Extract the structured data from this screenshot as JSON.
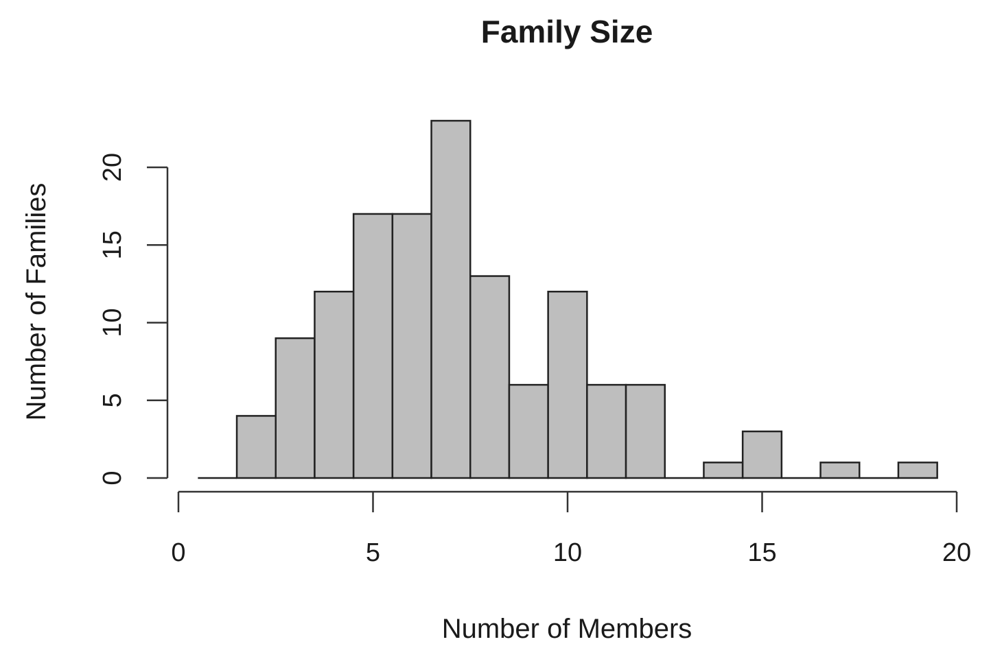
{
  "chart_data": {
    "type": "bar",
    "title": "Family Size",
    "xlabel": "Number of Members",
    "ylabel": "Number of Families",
    "bin_width": 1,
    "x": [
      1,
      2,
      3,
      4,
      5,
      6,
      7,
      8,
      9,
      10,
      11,
      12,
      13,
      14,
      15,
      16,
      17,
      18,
      19
    ],
    "values": [
      0,
      4,
      9,
      12,
      17,
      17,
      23,
      13,
      6,
      12,
      6,
      6,
      0,
      1,
      3,
      0,
      1,
      0,
      1
    ],
    "xlim": [
      0,
      20
    ],
    "ylim": [
      0,
      23
    ],
    "x_ticks": [
      0,
      5,
      10,
      15,
      20
    ],
    "x_tick_labels": [
      "0",
      "5",
      "10",
      "15",
      "20"
    ],
    "y_ticks": [
      0,
      5,
      10,
      15,
      20
    ],
    "y_tick_labels": [
      "0",
      "5",
      "10",
      "15",
      "20"
    ],
    "colors": {
      "bar_fill": "#bebebe",
      "bar_stroke": "#222222"
    },
    "grid": false,
    "legend": "none"
  }
}
